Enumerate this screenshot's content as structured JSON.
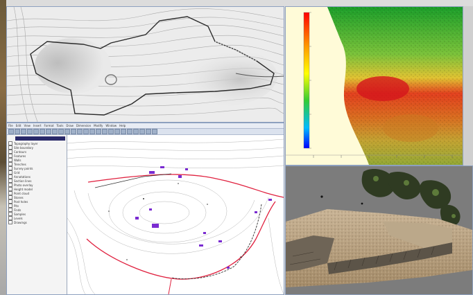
{
  "colors": {
    "terrain_bg": "#e6e6e6",
    "contour": "#9b9b9b",
    "boundary": "#2a2a2a",
    "red_path": "#e0213f",
    "feature_purple": "#7a2bd1",
    "cad_bg": "#ffffff",
    "ramp_top": "#ff0000",
    "ramp_bottom": "#0000ff",
    "photo_bg": "#7c7c7c"
  },
  "cad_window": {
    "menu": [
      "File",
      "Edit",
      "View",
      "Insert",
      "Format",
      "Tools",
      "Draw",
      "Dimension",
      "Modify",
      "Window",
      "Help"
    ],
    "layers": [
      "Topography layer",
      "Site boundary",
      "Contours",
      "Features",
      "Walls",
      "Trenches",
      "Survey points",
      "Grid",
      "Annotations",
      "Section lines",
      "Photo overlay",
      "Height model",
      "Point cloud",
      "Stones",
      "Post holes",
      "Pits",
      "Finds",
      "Samples",
      "Levels",
      "Drawings"
    ]
  },
  "scale_bar": {
    "ticks": [
      "",
      "",
      "",
      "",
      "",
      ""
    ]
  },
  "icons": {
    "tree_expand": "plus-box-icon",
    "toolbar_button": "tool-icon"
  }
}
